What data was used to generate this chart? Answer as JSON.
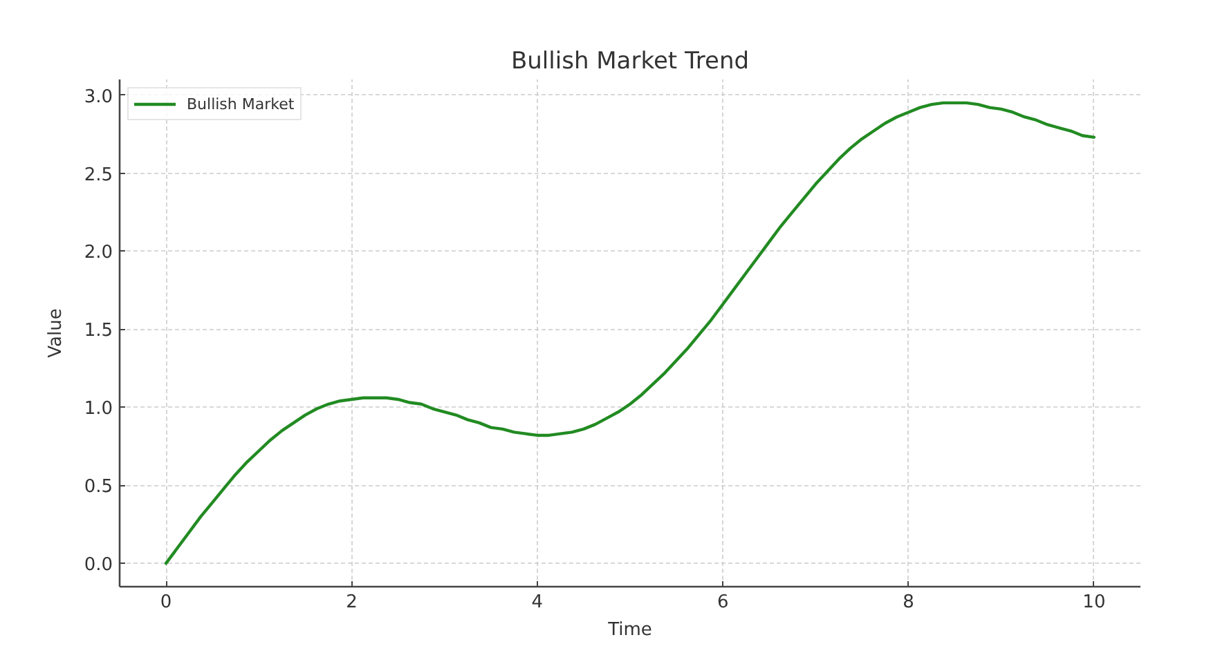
{
  "chart_data": {
    "type": "line",
    "title": "Bullish Market Trend",
    "xlabel": "Time",
    "ylabel": "Value",
    "x": [
      0,
      0.125,
      0.25,
      0.375,
      0.5,
      0.625,
      0.75,
      0.875,
      1.0,
      1.125,
      1.25,
      1.375,
      1.5,
      1.625,
      1.75,
      1.875,
      2.0,
      2.125,
      2.25,
      2.375,
      2.5,
      2.625,
      2.75,
      2.875,
      3.0,
      3.125,
      3.25,
      3.375,
      3.5,
      3.625,
      3.75,
      3.875,
      4.0,
      4.125,
      4.25,
      4.375,
      4.5,
      4.625,
      4.75,
      4.875,
      5.0,
      5.125,
      5.25,
      5.375,
      5.5,
      5.625,
      5.75,
      5.875,
      6.0,
      6.125,
      6.25,
      6.375,
      6.5,
      6.625,
      6.75,
      6.875,
      7.0,
      7.125,
      7.25,
      7.375,
      7.5,
      7.625,
      7.75,
      7.875,
      8.0,
      8.125,
      8.25,
      8.375,
      8.5,
      8.625,
      8.75,
      8.875,
      9.0,
      9.125,
      9.25,
      9.375,
      9.5,
      9.625,
      9.75,
      9.875,
      10.0
    ],
    "series": [
      {
        "name": "Bullish Market",
        "color": "#228b22",
        "values": [
          0,
          0.1,
          0.2,
          0.3,
          0.39,
          0.48,
          0.57,
          0.65,
          0.72,
          0.79,
          0.85,
          0.9,
          0.95,
          0.99,
          1.02,
          1.04,
          1.05,
          1.06,
          1.06,
          1.06,
          1.05,
          1.03,
          1.02,
          0.99,
          0.97,
          0.95,
          0.92,
          0.9,
          0.87,
          0.86,
          0.84,
          0.83,
          0.82,
          0.82,
          0.83,
          0.84,
          0.86,
          0.89,
          0.93,
          0.97,
          1.02,
          1.08,
          1.15,
          1.22,
          1.3,
          1.38,
          1.47,
          1.56,
          1.66,
          1.76,
          1.86,
          1.96,
          2.06,
          2.16,
          2.25,
          2.34,
          2.43,
          2.51,
          2.59,
          2.66,
          2.72,
          2.77,
          2.82,
          2.86,
          2.89,
          2.92,
          2.94,
          2.95,
          2.95,
          2.95,
          2.94,
          2.92,
          2.91,
          2.89,
          2.86,
          2.84,
          2.81,
          2.79,
          2.77,
          2.74,
          2.73
        ]
      }
    ],
    "xlim": [
      -0.5,
      10.5
    ],
    "ylim": [
      -0.15,
      3.1
    ],
    "xticks": [
      0,
      2,
      4,
      6,
      8,
      10
    ],
    "yticks": [
      {
        "value": 0,
        "label": "0.0"
      },
      0.5,
      {
        "value": 1,
        "label": "1.0"
      },
      1.5,
      {
        "value": 2,
        "label": "2.0"
      },
      2.5,
      {
        "value": 3,
        "label": "3.0"
      }
    ],
    "grid": true,
    "legend": "top left",
    "line_style": "solid",
    "marker": "none"
  }
}
